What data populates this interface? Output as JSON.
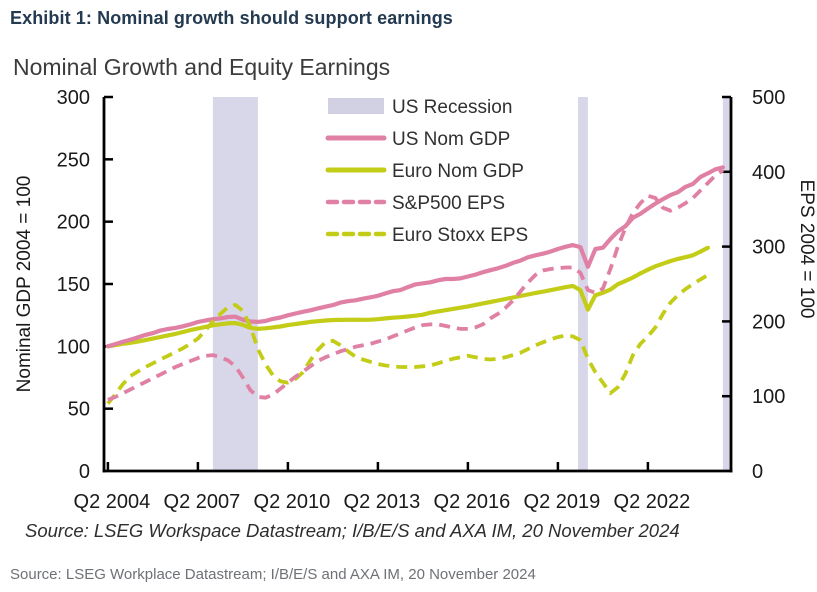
{
  "page": {
    "exhibit_title": "Exhibit 1: Nominal growth should support earnings",
    "footer_source": "Source: LSEG Workplace Datastream; I/B/E/S and AXA IM, 20 November 2024"
  },
  "chart_data": {
    "type": "line",
    "title": "Nominal Growth and Equity Earnings",
    "source_note": "Source: LSEG Workspace Datastream; I/B/E/S and AXA IM, 20 November 2024",
    "legend": [
      "US Recession",
      "US Nom GDP",
      "Euro Nom GDP",
      "S&P500 EPS",
      "Euro Stoxx EPS"
    ],
    "legend_position": "top-center-inside",
    "grid": "off",
    "colors": {
      "pink": "#e080a4",
      "green": "#c3cc17",
      "recession_band": "#d8d7e9",
      "recession_legend": "#d2d1e4",
      "axis": "#000000"
    },
    "left_axis": {
      "label": "Nominal GDP 2004 = 100",
      "min": 0,
      "max": 300,
      "ticks": [
        0,
        50,
        100,
        150,
        200,
        250,
        300
      ]
    },
    "right_axis": {
      "label": "EPS 2004 = 100",
      "min": 0,
      "max": 500,
      "ticks": [
        0,
        100,
        200,
        300,
        400,
        500
      ]
    },
    "x_axis": {
      "unit": "quarterly",
      "domain": [
        2004.2,
        2025.1
      ],
      "ticks": [
        {
          "label": "Q2 2004",
          "year": 2004.33
        },
        {
          "label": "Q2 2007",
          "year": 2007.33
        },
        {
          "label": "Q2 2010",
          "year": 2010.33
        },
        {
          "label": "Q2 2013",
          "year": 2013.33
        },
        {
          "label": "Q2 2016",
          "year": 2016.33
        },
        {
          "label": "Q2 2019",
          "year": 2019.33
        },
        {
          "label": "Q2 2022",
          "year": 2022.33
        }
      ]
    },
    "recession_bands": [
      {
        "from": 2007.83,
        "to": 2009.33
      },
      {
        "from": 2020.0,
        "to": 2020.33
      },
      {
        "from": 2024.83,
        "to": 2025.1
      }
    ],
    "series": [
      {
        "name": "US Nom GDP",
        "axis": "left",
        "style": "solid",
        "color": "#e080a4",
        "x_start": 2004.33,
        "x_step": 0.25,
        "first_point": "Q2 2004",
        "values": [
          100,
          101.8,
          103.6,
          105.3,
          107.2,
          109.2,
          110.6,
          112.7,
          113.9,
          114.8,
          116.1,
          117.6,
          119.5,
          120.7,
          121.8,
          122.4,
          123.5,
          123.8,
          121.4,
          119.9,
          119.6,
          120.3,
          122,
          123.1,
          124.9,
          126.3,
          127.7,
          128.9,
          130.4,
          131.8,
          133.1,
          135.1,
          136.2,
          136.9,
          138.2,
          139.3,
          140.5,
          142.5,
          144.2,
          145.1,
          147.5,
          149.7,
          150.6,
          151.4,
          153,
          154,
          154,
          154.5,
          156,
          157.5,
          159.5,
          161.1,
          162.6,
          164.5,
          166.9,
          168.8,
          171.4,
          173,
          174.3,
          176,
          178.1,
          179.8,
          181.2,
          179.6,
          163.8,
          178.1,
          179.1,
          186.1,
          192.2,
          196.4,
          203.1,
          206.3,
          210.6,
          214.5,
          218,
          221.3,
          223.6,
          227.9,
          230.3,
          235.8,
          238.8,
          242,
          243.5
        ]
      },
      {
        "name": "Euro Nom GDP",
        "axis": "left",
        "style": "solid",
        "color": "#c3cc17",
        "x_start": 2004.33,
        "x_step": 0.25,
        "first_point": "Q2 2004",
        "values": [
          100,
          101,
          102,
          102.8,
          103.8,
          105,
          106.2,
          107.5,
          108.8,
          110,
          111.5,
          113,
          114.3,
          115.6,
          116.9,
          117.7,
          118.5,
          118.6,
          117.3,
          114.8,
          114.1,
          114.5,
          115.2,
          115.9,
          117,
          117.8,
          118.7,
          119.6,
          120.2,
          120.7,
          121.1,
          121.2,
          121.3,
          121.4,
          121.3,
          121.4,
          121.8,
          122.4,
          123,
          123.4,
          123.9,
          124.6,
          125.4,
          127,
          128,
          129,
          130,
          131,
          132,
          133.2,
          134.4,
          135.6,
          136.8,
          138,
          139.2,
          140.4,
          141.6,
          142.8,
          143.8,
          145,
          146.2,
          147.4,
          148.5,
          145,
          129.5,
          141,
          143,
          145.5,
          149.8,
          152.5,
          155.2,
          158.5,
          161.5,
          164.2,
          166.3,
          168.4,
          170.1,
          171.5,
          173,
          176,
          179
        ]
      },
      {
        "name": "S&P500 EPS",
        "axis": "right",
        "style": "dashed",
        "color": "#e080a4",
        "x_start": 2004.33,
        "x_step": 0.25,
        "first_point": "Q2 2004",
        "values": [
          95,
          99,
          104,
          109,
          114,
          119,
          124,
          129,
          134,
          139,
          143,
          147,
          151,
          154,
          155,
          152,
          148,
          140,
          125,
          108,
          99,
          98,
          102,
          110,
          118,
          126,
          133,
          140,
          147,
          152,
          156,
          160,
          163,
          166,
          168,
          170,
          173,
          176,
          180,
          184,
          188,
          192,
          195,
          196,
          196,
          194,
          192,
          190,
          190,
          192,
          196,
          204,
          210,
          218,
          228,
          240,
          252,
          262,
          268,
          270,
          271,
          272,
          272,
          265,
          242,
          238,
          244,
          270,
          300,
          325,
          345,
          358,
          368,
          365,
          352,
          348,
          352,
          358,
          365,
          375,
          385,
          395,
          402
        ]
      },
      {
        "name": "Euro Stoxx EPS",
        "axis": "right",
        "style": "dashed",
        "color": "#c3cc17",
        "x_start": 2004.33,
        "x_step": 0.25,
        "first_point": "Q2 2004",
        "values": [
          90,
          103,
          116,
          127,
          133,
          139,
          144,
          149,
          154,
          159,
          164,
          170,
          177,
          188,
          200,
          210,
          219,
          222,
          214,
          193,
          163,
          143,
          128,
          120,
          118,
          123,
          132,
          148,
          162,
          172,
          174,
          168,
          160,
          153,
          149,
          146,
          143,
          141,
          140,
          139,
          139,
          139,
          140,
          141,
          144,
          147,
          150,
          152,
          154,
          152,
          150,
          149,
          150,
          152,
          155,
          158,
          163,
          168,
          172,
          176,
          179,
          181,
          180,
          175,
          150,
          132,
          118,
          104,
          112,
          130,
          155,
          170,
          180,
          192,
          210,
          225,
          235,
          243,
          250,
          256,
          262
        ]
      }
    ]
  }
}
